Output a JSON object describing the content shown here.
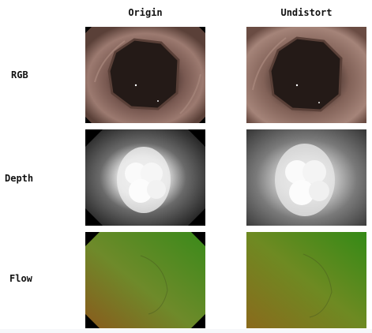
{
  "columns": [
    "Origin",
    "Undistort"
  ],
  "rows": [
    "RGB",
    "Depth",
    "Flow"
  ]
}
